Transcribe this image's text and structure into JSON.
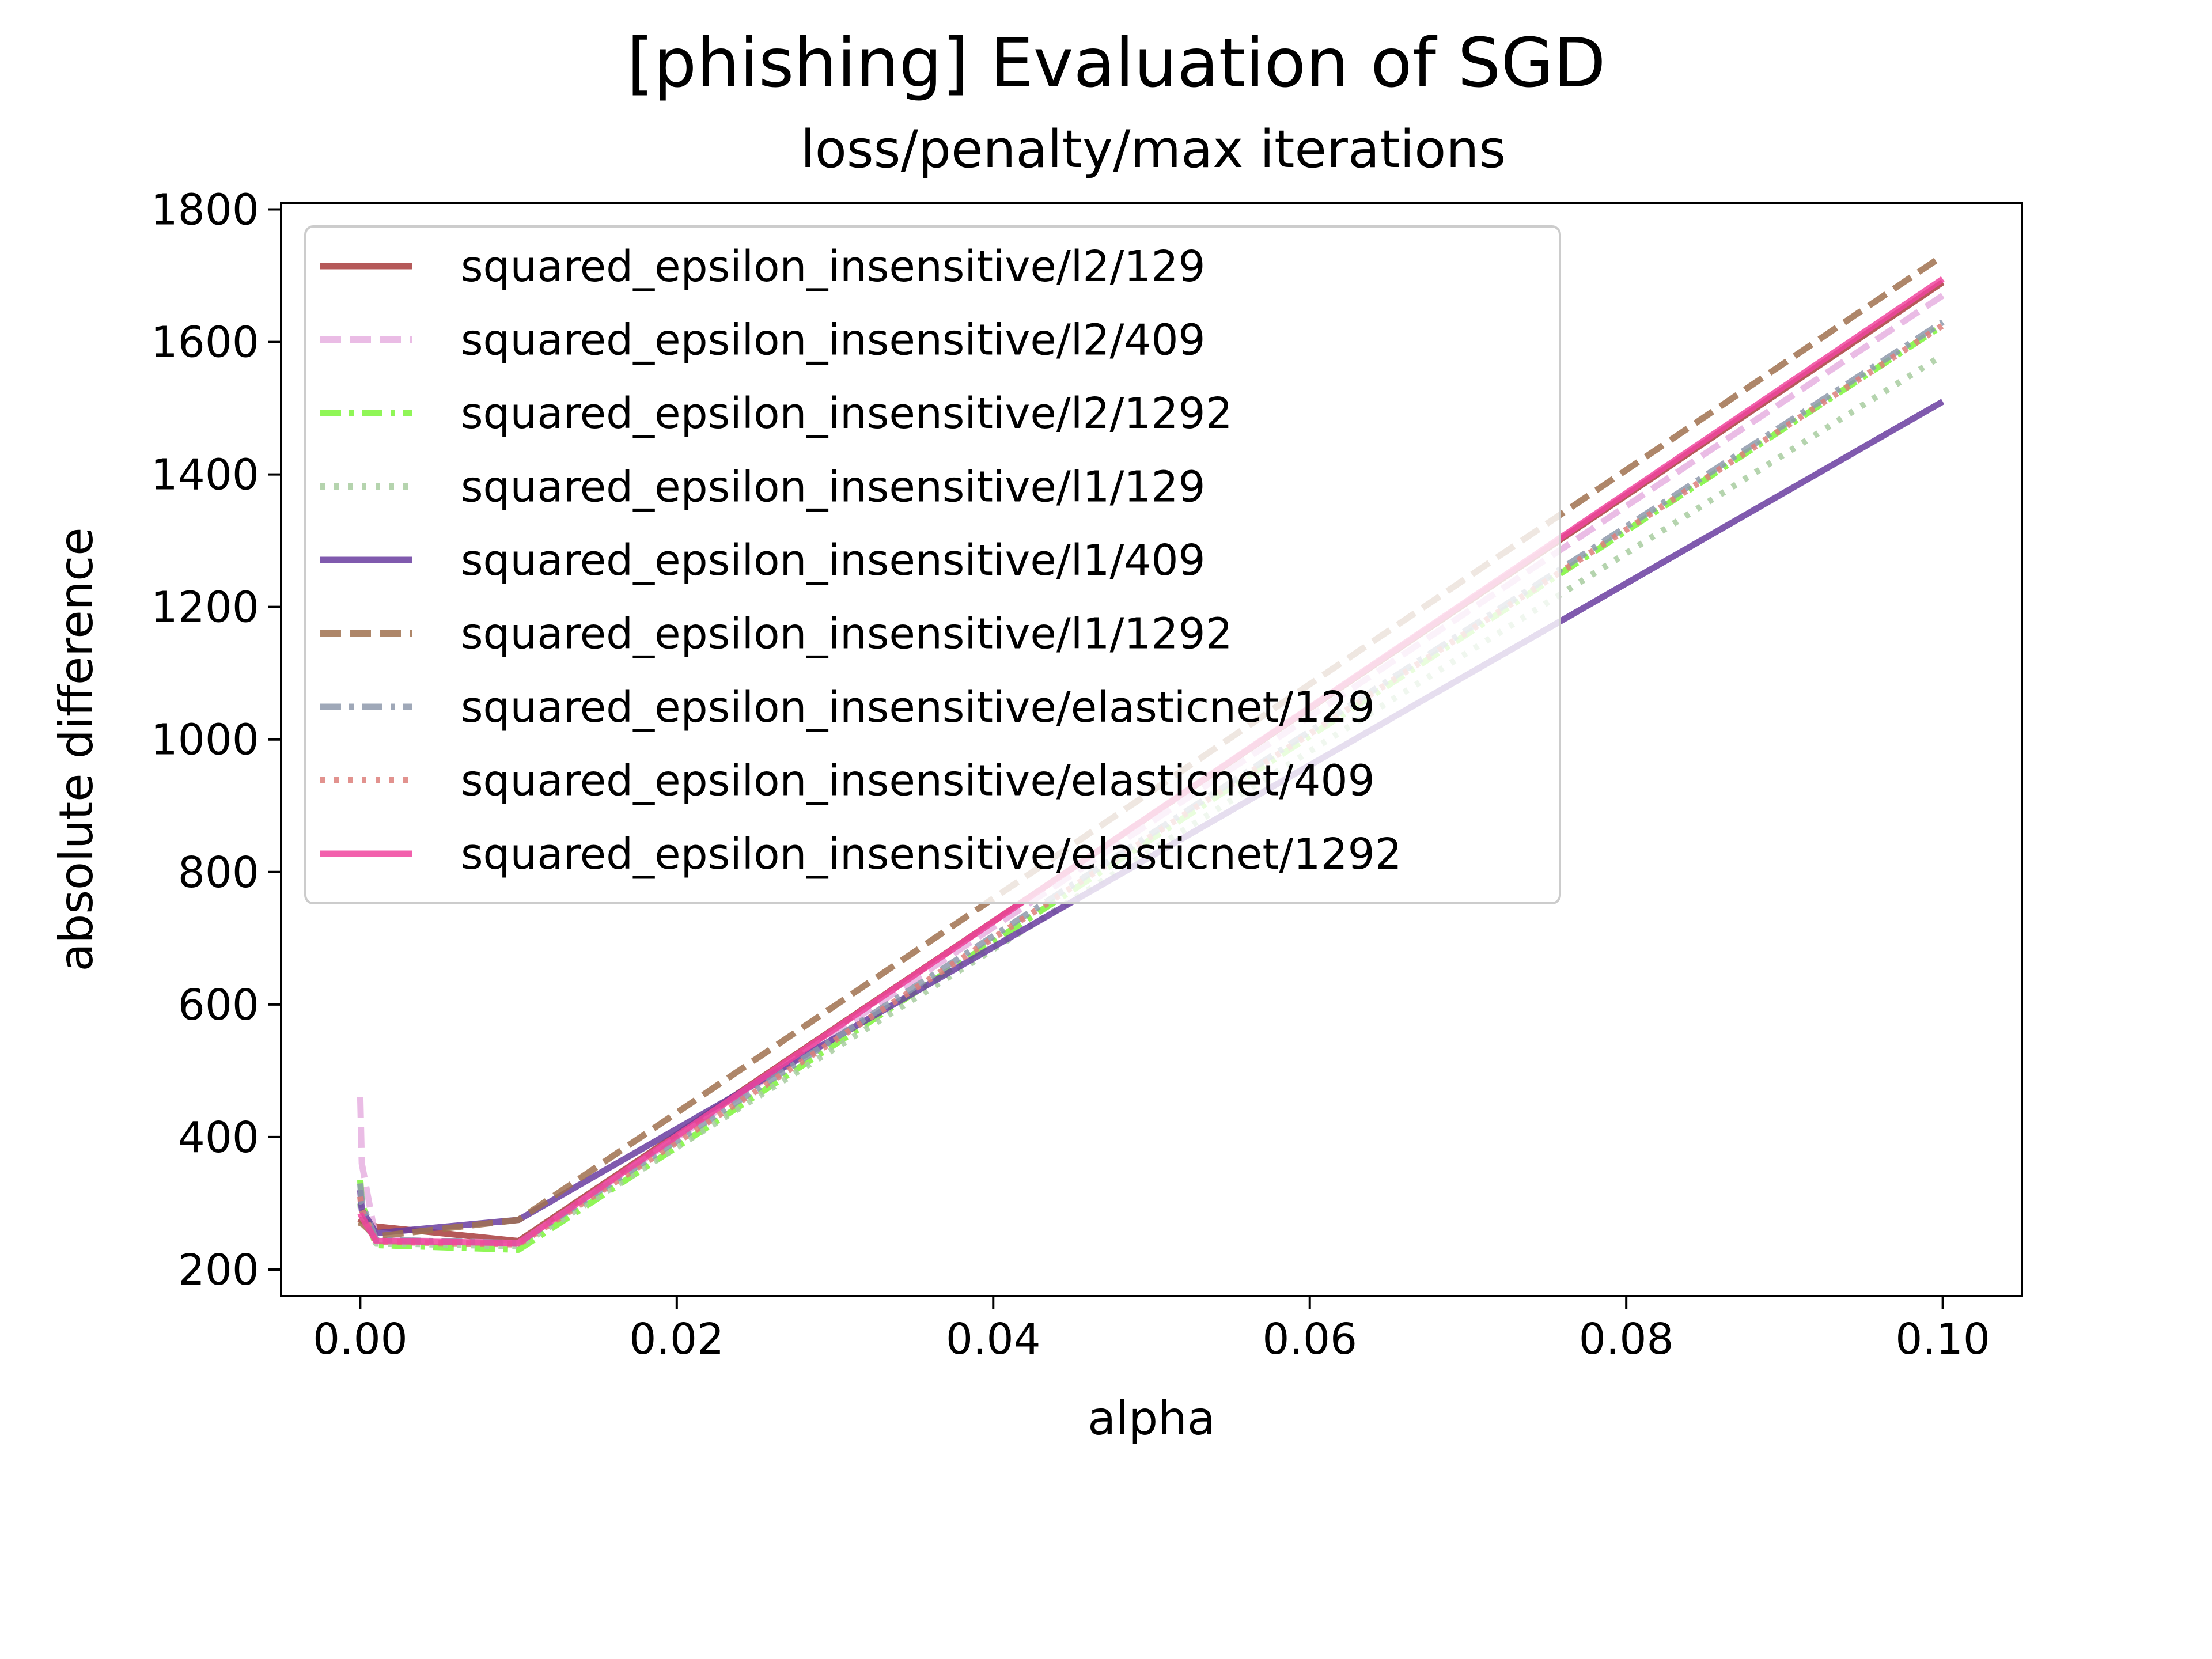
{
  "chart_data": {
    "type": "line",
    "title": "[phishing] Evaluation of SGD",
    "subtitle": "loss/penalty/max iterations",
    "xlabel": "alpha",
    "ylabel": "absolute difference",
    "xlim": [
      -0.005,
      0.105
    ],
    "ylim": [
      160,
      1810
    ],
    "xticks": [
      0.0,
      0.02,
      0.04,
      0.06,
      0.08,
      0.1
    ],
    "xtick_labels": [
      "0.00",
      "0.02",
      "0.04",
      "0.06",
      "0.08",
      "0.10"
    ],
    "yticks": [
      200,
      400,
      600,
      800,
      1000,
      1200,
      1400,
      1600,
      1800
    ],
    "ytick_labels": [
      "200",
      "400",
      "600",
      "800",
      "1000",
      "1200",
      "1400",
      "1600",
      "1800"
    ],
    "grid": false,
    "legend_position": "upper-left",
    "x": [
      0.0,
      0.0001,
      0.001,
      0.01,
      0.1
    ],
    "series": [
      {
        "name": "squared_epsilon_insensitive/l2/129",
        "color": "#a83c3c",
        "dash": "solid",
        "values": [
          270,
          275,
          265,
          243,
          1690
        ]
      },
      {
        "name": "squared_epsilon_insensitive/l2/409",
        "color": "#e6b0e0",
        "dash": "dashed",
        "values": [
          460,
          360,
          245,
          240,
          1670
        ]
      },
      {
        "name": "squared_epsilon_insensitive/l2/1292",
        "color": "#7cf53a",
        "dash": "dashdot",
        "values": [
          335,
          300,
          237,
          230,
          1625
        ]
      },
      {
        "name": "squared_epsilon_insensitive/l1/129",
        "color": "#a8cda0",
        "dash": "dotted",
        "values": [
          300,
          280,
          240,
          235,
          1580
        ]
      },
      {
        "name": "squared_epsilon_insensitive/l1/409",
        "color": "#6a3da0",
        "dash": "solid",
        "values": [
          320,
          290,
          255,
          275,
          1510
        ]
      },
      {
        "name": "squared_epsilon_insensitive/l1/1292",
        "color": "#a0714f",
        "dash": "dashed",
        "values": [
          265,
          270,
          250,
          275,
          1730
        ]
      },
      {
        "name": "squared_epsilon_insensitive/elasticnet/129",
        "color": "#8e99ab",
        "dash": "dashdot",
        "values": [
          330,
          300,
          245,
          240,
          1630
        ]
      },
      {
        "name": "squared_epsilon_insensitive/elasticnet/409",
        "color": "#dd7f7a",
        "dash": "dotted",
        "values": [
          310,
          290,
          242,
          238,
          1625
        ]
      },
      {
        "name": "squared_epsilon_insensitive/elasticnet/1292",
        "color": "#f0449e",
        "dash": "solid",
        "values": [
          285,
          280,
          243,
          240,
          1695
        ]
      }
    ]
  }
}
